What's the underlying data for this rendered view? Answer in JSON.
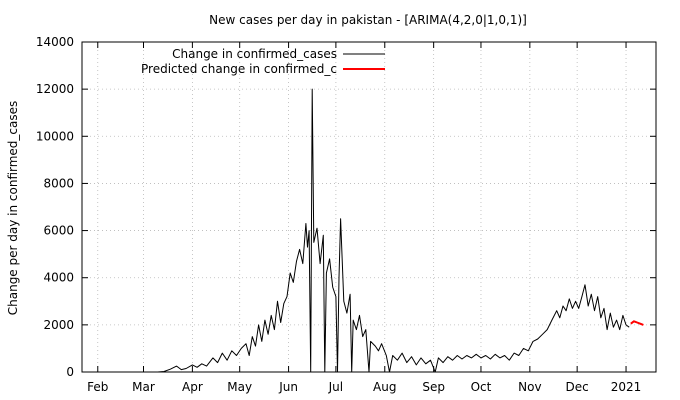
{
  "chart_data": {
    "type": "line",
    "title": "New cases per day in pakistan -  [ARIMA(4,2,0|1,0,1)]",
    "xlabel": "",
    "ylabel": "Change per day in confirmed_cases",
    "ylim": [
      0,
      14000
    ],
    "yticks": [
      0,
      2000,
      4000,
      6000,
      8000,
      10000,
      12000,
      14000
    ],
    "xticks": [
      {
        "date": "2020-02-01",
        "label": "Feb"
      },
      {
        "date": "2020-03-01",
        "label": "Mar"
      },
      {
        "date": "2020-04-01",
        "label": "Apr"
      },
      {
        "date": "2020-05-01",
        "label": "May"
      },
      {
        "date": "2020-06-01",
        "label": "Jun"
      },
      {
        "date": "2020-07-01",
        "label": "Jul"
      },
      {
        "date": "2020-08-01",
        "label": "Aug"
      },
      {
        "date": "2020-09-01",
        "label": "Sep"
      },
      {
        "date": "2020-10-01",
        "label": "Oct"
      },
      {
        "date": "2020-11-01",
        "label": "Nov"
      },
      {
        "date": "2020-12-01",
        "label": "Dec"
      },
      {
        "date": "2021-01-01",
        "label": "2021"
      }
    ],
    "xlim": [
      "2020-01-22",
      "2021-01-20"
    ],
    "grid": true,
    "legend_position": "top-left",
    "series": [
      {
        "name": "Change in confirmed_cases",
        "color": "#000000",
        "points": [
          [
            "2020-01-22",
            0
          ],
          [
            "2020-02-15",
            0
          ],
          [
            "2020-03-01",
            0
          ],
          [
            "2020-03-10",
            0
          ],
          [
            "2020-03-14",
            20
          ],
          [
            "2020-03-18",
            120
          ],
          [
            "2020-03-22",
            250
          ],
          [
            "2020-03-25",
            100
          ],
          [
            "2020-03-28",
            150
          ],
          [
            "2020-04-01",
            300
          ],
          [
            "2020-04-04",
            200
          ],
          [
            "2020-04-07",
            350
          ],
          [
            "2020-04-10",
            250
          ],
          [
            "2020-04-14",
            600
          ],
          [
            "2020-04-17",
            400
          ],
          [
            "2020-04-20",
            800
          ],
          [
            "2020-04-23",
            500
          ],
          [
            "2020-04-26",
            900
          ],
          [
            "2020-04-29",
            700
          ],
          [
            "2020-05-02",
            1000
          ],
          [
            "2020-05-05",
            1200
          ],
          [
            "2020-05-07",
            700
          ],
          [
            "2020-05-09",
            1500
          ],
          [
            "2020-05-11",
            1100
          ],
          [
            "2020-05-13",
            2000
          ],
          [
            "2020-05-15",
            1300
          ],
          [
            "2020-05-17",
            2200
          ],
          [
            "2020-05-19",
            1600
          ],
          [
            "2020-05-21",
            2400
          ],
          [
            "2020-05-23",
            1800
          ],
          [
            "2020-05-25",
            3000
          ],
          [
            "2020-05-27",
            2100
          ],
          [
            "2020-05-29",
            2900
          ],
          [
            "2020-05-31",
            3200
          ],
          [
            "2020-06-02",
            4200
          ],
          [
            "2020-06-04",
            3800
          ],
          [
            "2020-06-06",
            4700
          ],
          [
            "2020-06-08",
            5200
          ],
          [
            "2020-06-10",
            4600
          ],
          [
            "2020-06-12",
            6300
          ],
          [
            "2020-06-13",
            5300
          ],
          [
            "2020-06-14",
            6000
          ],
          [
            "2020-06-15",
            0
          ],
          [
            "2020-06-16",
            12000
          ],
          [
            "2020-06-17",
            5500
          ],
          [
            "2020-06-19",
            6100
          ],
          [
            "2020-06-21",
            4600
          ],
          [
            "2020-06-23",
            5800
          ],
          [
            "2020-06-24",
            0
          ],
          [
            "2020-06-25",
            4200
          ],
          [
            "2020-06-27",
            4800
          ],
          [
            "2020-06-29",
            3600
          ],
          [
            "2020-07-01",
            3200
          ],
          [
            "2020-07-02",
            0
          ],
          [
            "2020-07-03",
            4000
          ],
          [
            "2020-07-04",
            6500
          ],
          [
            "2020-07-06",
            3000
          ],
          [
            "2020-07-08",
            2500
          ],
          [
            "2020-07-10",
            3300
          ],
          [
            "2020-07-11",
            0
          ],
          [
            "2020-07-12",
            2200
          ],
          [
            "2020-07-14",
            1800
          ],
          [
            "2020-07-16",
            2400
          ],
          [
            "2020-07-18",
            1500
          ],
          [
            "2020-07-20",
            1800
          ],
          [
            "2020-07-22",
            0
          ],
          [
            "2020-07-23",
            1300
          ],
          [
            "2020-07-26",
            1100
          ],
          [
            "2020-07-28",
            900
          ],
          [
            "2020-07-30",
            1200
          ],
          [
            "2020-08-02",
            700
          ],
          [
            "2020-08-04",
            0
          ],
          [
            "2020-08-06",
            700
          ],
          [
            "2020-08-09",
            500
          ],
          [
            "2020-08-12",
            800
          ],
          [
            "2020-08-15",
            400
          ],
          [
            "2020-08-18",
            650
          ],
          [
            "2020-08-21",
            300
          ],
          [
            "2020-08-24",
            600
          ],
          [
            "2020-08-27",
            350
          ],
          [
            "2020-08-30",
            500
          ],
          [
            "2020-09-02",
            0
          ],
          [
            "2020-09-04",
            600
          ],
          [
            "2020-09-07",
            400
          ],
          [
            "2020-09-10",
            650
          ],
          [
            "2020-09-13",
            500
          ],
          [
            "2020-09-16",
            700
          ],
          [
            "2020-09-19",
            550
          ],
          [
            "2020-09-22",
            700
          ],
          [
            "2020-09-25",
            600
          ],
          [
            "2020-09-28",
            750
          ],
          [
            "2020-10-01",
            600
          ],
          [
            "2020-10-04",
            700
          ],
          [
            "2020-10-07",
            550
          ],
          [
            "2020-10-10",
            750
          ],
          [
            "2020-10-13",
            600
          ],
          [
            "2020-10-16",
            700
          ],
          [
            "2020-10-19",
            500
          ],
          [
            "2020-10-22",
            800
          ],
          [
            "2020-10-25",
            700
          ],
          [
            "2020-10-28",
            1000
          ],
          [
            "2020-10-31",
            900
          ],
          [
            "2020-11-03",
            1300
          ],
          [
            "2020-11-06",
            1400
          ],
          [
            "2020-11-09",
            1600
          ],
          [
            "2020-11-12",
            1800
          ],
          [
            "2020-11-15",
            2200
          ],
          [
            "2020-11-18",
            2600
          ],
          [
            "2020-11-20",
            2300
          ],
          [
            "2020-11-22",
            2800
          ],
          [
            "2020-11-24",
            2600
          ],
          [
            "2020-11-26",
            3100
          ],
          [
            "2020-11-28",
            2700
          ],
          [
            "2020-11-30",
            3000
          ],
          [
            "2020-12-02",
            2700
          ],
          [
            "2020-12-04",
            3200
          ],
          [
            "2020-12-06",
            3700
          ],
          [
            "2020-12-08",
            2800
          ],
          [
            "2020-12-10",
            3300
          ],
          [
            "2020-12-12",
            2600
          ],
          [
            "2020-12-14",
            3200
          ],
          [
            "2020-12-16",
            2300
          ],
          [
            "2020-12-18",
            2700
          ],
          [
            "2020-12-20",
            1800
          ],
          [
            "2020-12-22",
            2500
          ],
          [
            "2020-12-24",
            1900
          ],
          [
            "2020-12-26",
            2200
          ],
          [
            "2020-12-28",
            1800
          ],
          [
            "2020-12-30",
            2400
          ],
          [
            "2021-01-01",
            2000
          ],
          [
            "2021-01-03",
            1900
          ]
        ]
      },
      {
        "name": "Predicted change in confirmed_c",
        "color": "#ff0000",
        "points": [
          [
            "2021-01-04",
            2050
          ],
          [
            "2021-01-06",
            2150
          ],
          [
            "2021-01-08",
            2100
          ],
          [
            "2021-01-10",
            2050
          ],
          [
            "2021-01-12",
            2000
          ]
        ]
      }
    ]
  }
}
